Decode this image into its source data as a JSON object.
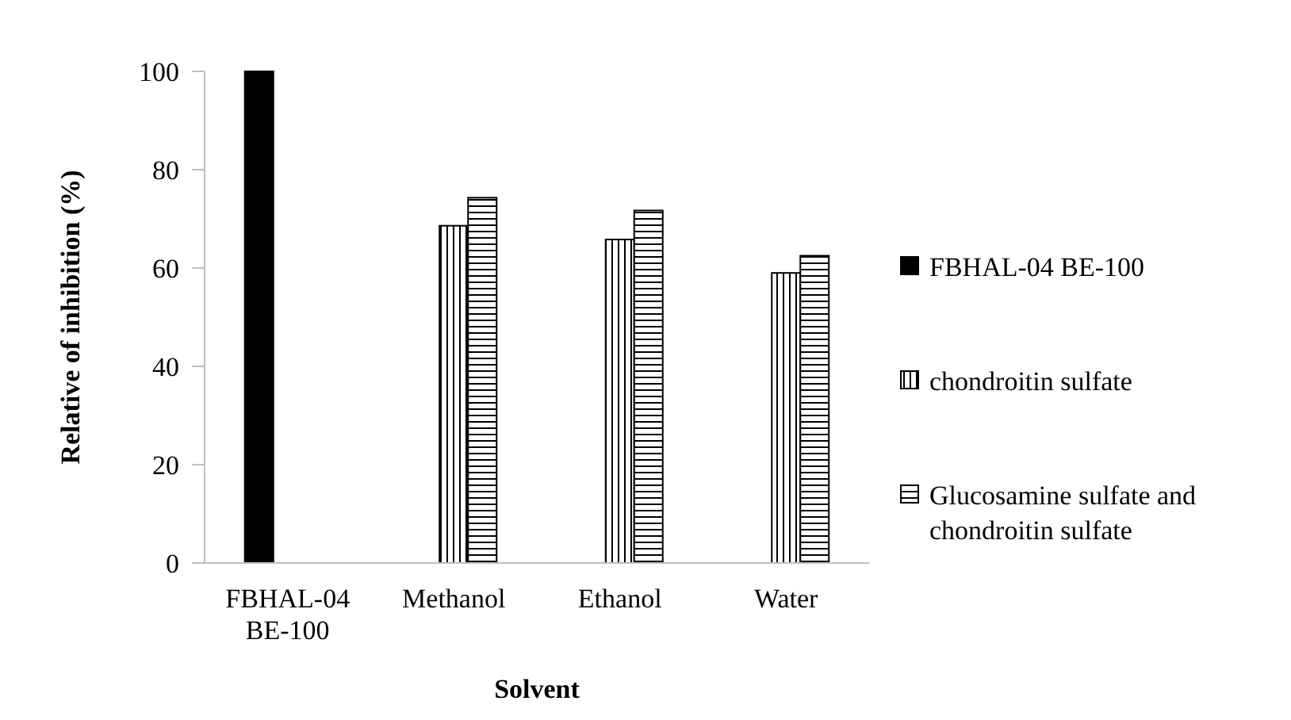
{
  "chart_data": {
    "type": "bar",
    "xlabel": "Solvent",
    "ylabel": "Relative of inhibition (%)",
    "categories": [
      "FBHAL-04 BE-100",
      "Methanol",
      "Ethanol",
      "Water"
    ],
    "series": [
      {
        "name": "FBHAL-04 BE-100",
        "color": "#000000",
        "values": [
          100,
          null,
          null,
          null
        ]
      },
      {
        "name": "chondroitin sulfate",
        "color": "#000000",
        "values": [
          null,
          68.6,
          65.8,
          59
        ]
      },
      {
        "name": "Glucosamine sulfate and chondroitin sulfate",
        "color": "#000000",
        "values": [
          null,
          74.3,
          71.7,
          62.5
        ]
      }
    ],
    "ylim": [
      0,
      100
    ],
    "yticks": [
      0,
      20,
      40,
      60,
      80,
      100
    ],
    "grid": false,
    "legend": "right"
  }
}
